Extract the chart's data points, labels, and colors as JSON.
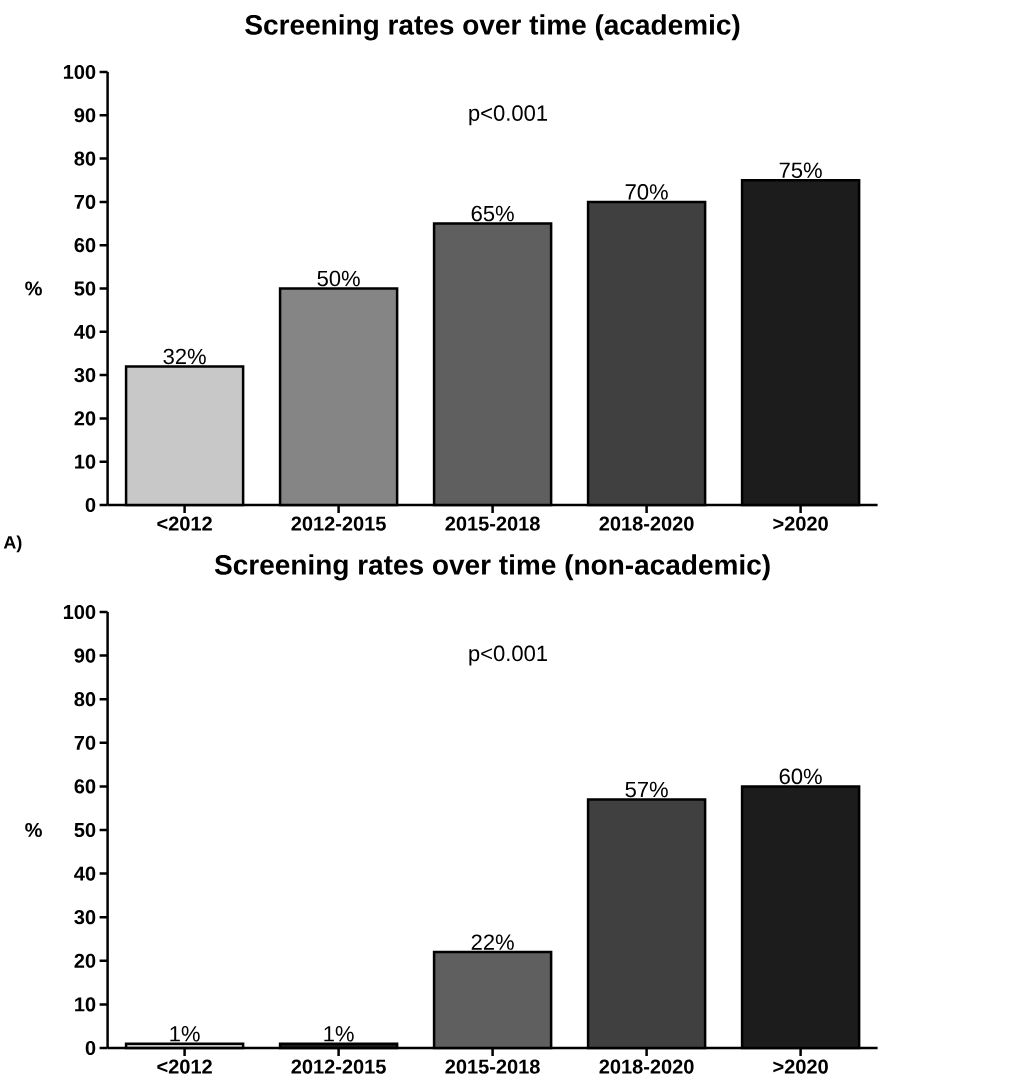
{
  "chart_data": [
    {
      "type": "bar",
      "title": "Screening rates over time (academic)",
      "ylabel": "%",
      "categories": [
        "<2012",
        "2012-2015",
        "2015-2018",
        "2018-2020",
        ">2020"
      ],
      "values": [
        32,
        50,
        65,
        70,
        75
      ],
      "value_labels": [
        "32%",
        "50%",
        "65%",
        "70%",
        "75%"
      ],
      "colors": [
        "#c8c8c8",
        "#858585",
        "#5f5f5f",
        "#404040",
        "#1c1c1c"
      ],
      "ylim": [
        0,
        100
      ],
      "yticks": [
        0,
        10,
        20,
        30,
        40,
        50,
        60,
        70,
        80,
        90,
        100
      ],
      "annotations": [
        "p<0.001",
        "A)"
      ],
      "grid": false
    },
    {
      "type": "bar",
      "title": "Screening rates over time (non-academic)",
      "ylabel": "%",
      "categories": [
        "<2012",
        "2012-2015",
        "2015-2018",
        "2018-2020",
        ">2020"
      ],
      "values": [
        1,
        1,
        22,
        57,
        60
      ],
      "value_labels": [
        "1%",
        "1%",
        "22%",
        "57%",
        "60%"
      ],
      "colors": [
        "#c8c8c8",
        "#1c1c1c",
        "#5f5f5f",
        "#404040",
        "#1c1c1c"
      ],
      "ylim": [
        0,
        100
      ],
      "yticks": [
        0,
        10,
        20,
        30,
        40,
        50,
        60,
        70,
        80,
        90,
        100
      ],
      "annotations": [
        "p<0.001"
      ],
      "grid": false
    }
  ]
}
